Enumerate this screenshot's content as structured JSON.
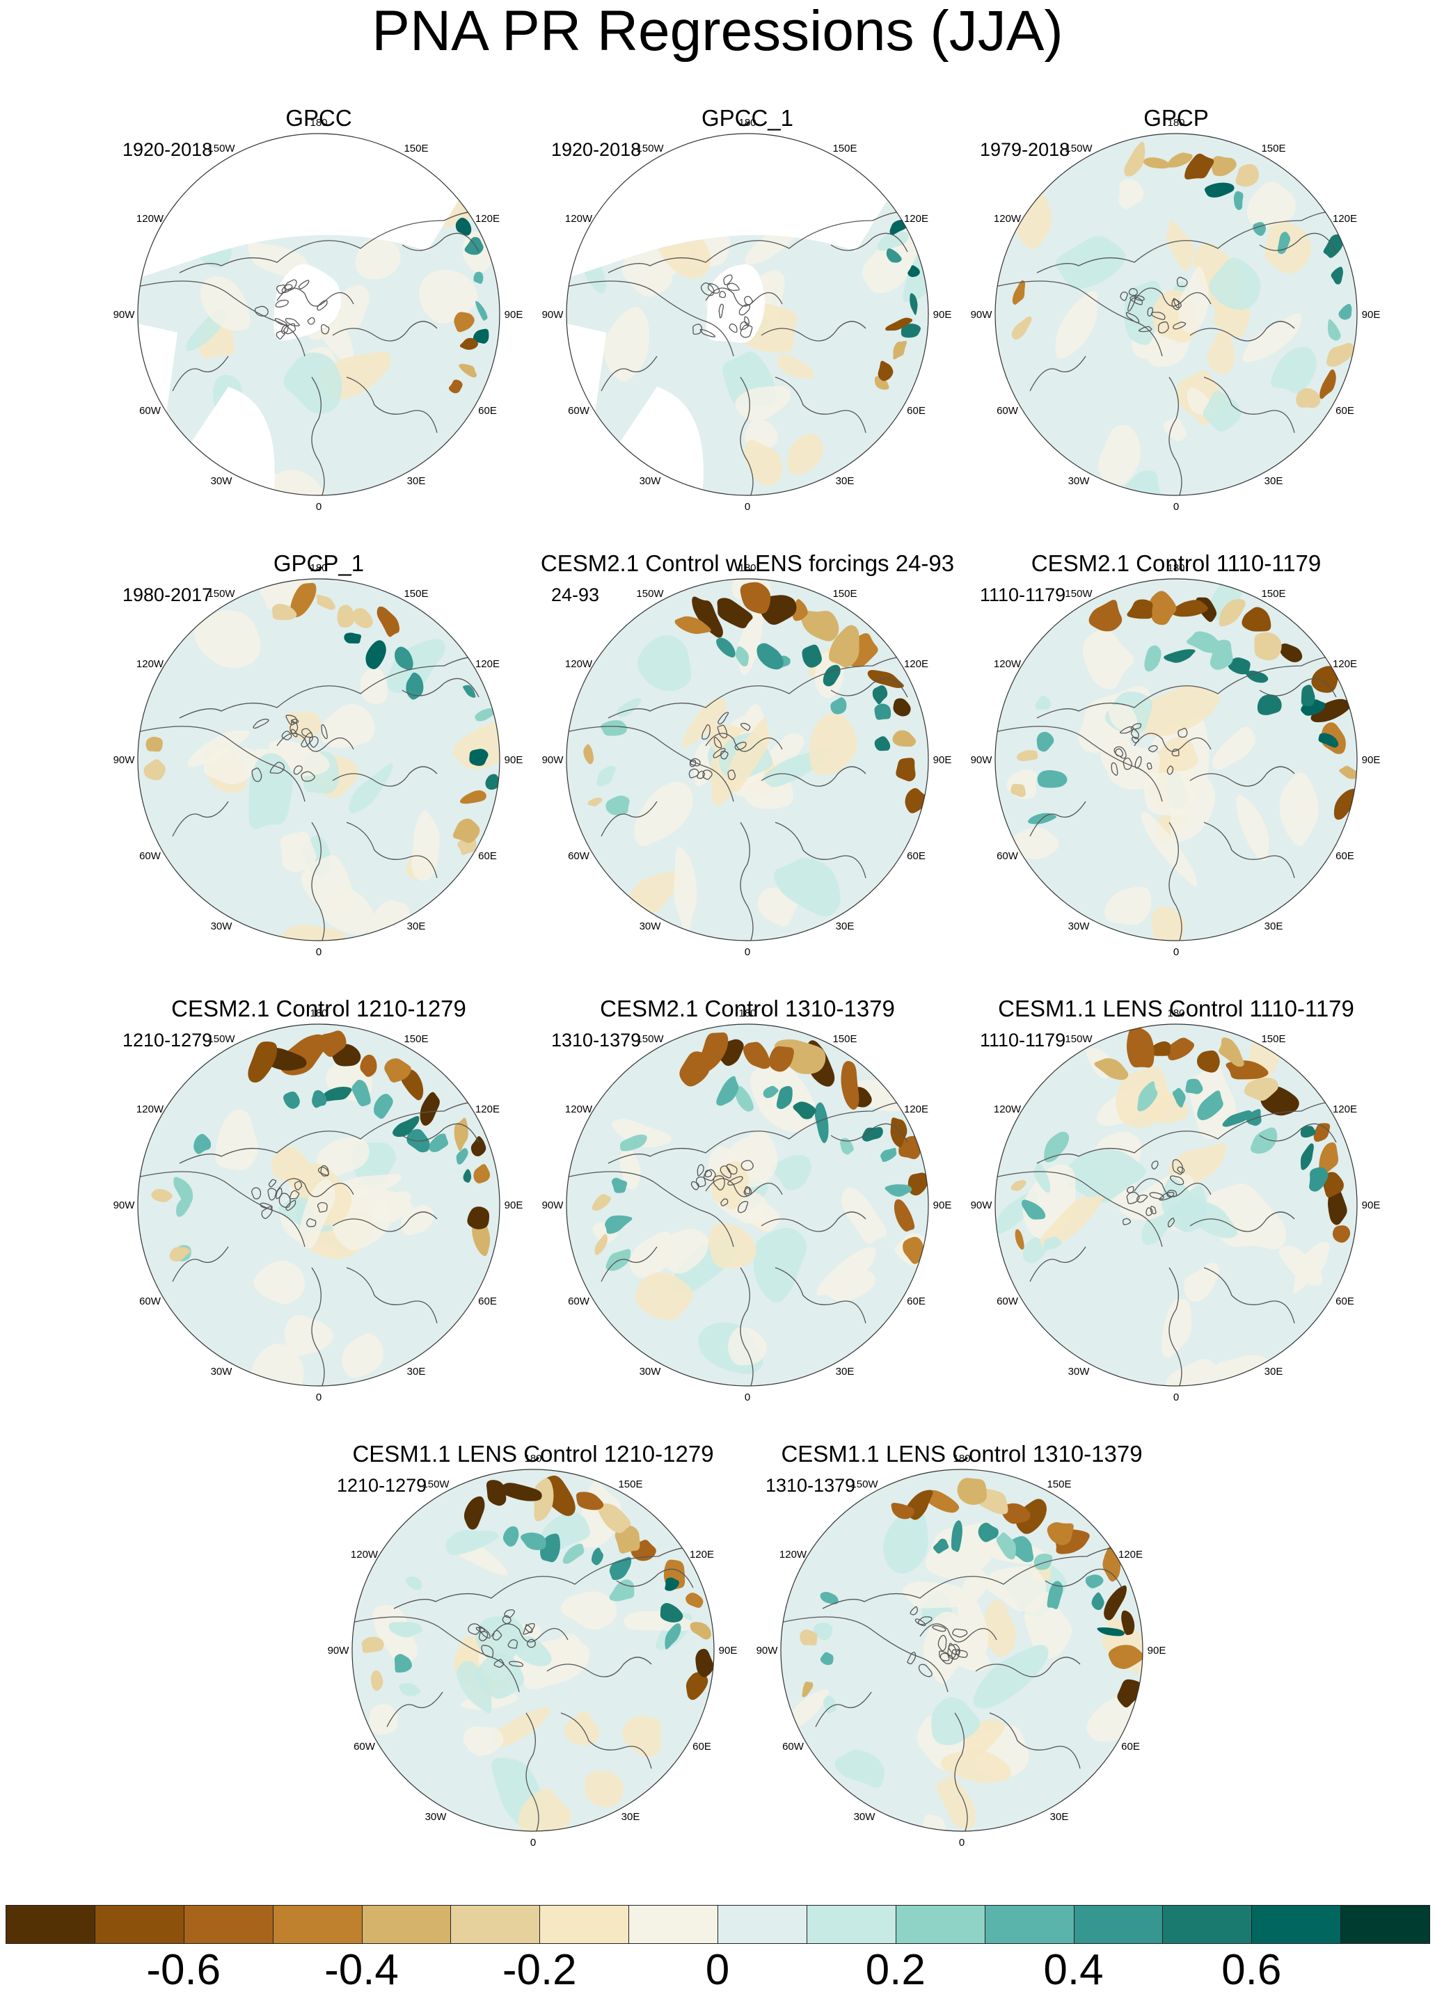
{
  "title": "PNA PR Regressions (JJA)",
  "panels": [
    {
      "title": "GPCC",
      "period": "1920-2018",
      "style": "gpcc",
      "seed": 11
    },
    {
      "title": "GPCC_1",
      "period": "1920-2018",
      "style": "gpcc",
      "seed": 23
    },
    {
      "title": "GPCP",
      "period": "1979-2018",
      "style": "gpcp",
      "seed": 37
    },
    {
      "title": "GPCP_1",
      "period": "1980-2017",
      "style": "gpcp",
      "seed": 41
    },
    {
      "title": "CESM2.1 Control wLENS forcings 24-93",
      "period": "24-93",
      "style": "model",
      "seed": 53
    },
    {
      "title": "CESM2.1 Control 1110-1179",
      "period": "1110-1179",
      "style": "model",
      "seed": 67
    },
    {
      "title": "CESM2.1 Control 1210-1279",
      "period": "1210-1279",
      "style": "model",
      "seed": 71
    },
    {
      "title": "CESM2.1 Control 1310-1379",
      "period": "1310-1379",
      "style": "model",
      "seed": 83
    },
    {
      "title": "CESM1.1 LENS Control 1110-1179",
      "period": "1110-1179",
      "style": "model",
      "seed": 97
    },
    {
      "title": "CESM1.1 LENS Control 1210-1279",
      "period": "1210-1279",
      "style": "model",
      "seed": 101
    },
    {
      "title": "CESM1.1 LENS Control 1310-1379",
      "period": "1310-1379",
      "style": "model",
      "seed": 113
    }
  ],
  "longitude_labels": [
    {
      "label": "180",
      "lon": 180
    },
    {
      "label": "150E",
      "lon": 150
    },
    {
      "label": "120E",
      "lon": 120
    },
    {
      "label": "90E",
      "lon": 90
    },
    {
      "label": "60E",
      "lon": 60
    },
    {
      "label": "30E",
      "lon": 30
    },
    {
      "label": "0",
      "lon": 0
    },
    {
      "label": "30W",
      "lon": -30
    },
    {
      "label": "60W",
      "lon": -60
    },
    {
      "label": "90W",
      "lon": -90
    },
    {
      "label": "120W",
      "lon": -120
    },
    {
      "label": "150W",
      "lon": -150
    }
  ],
  "colorbar": {
    "colors": [
      "#543005",
      "#8c510a",
      "#a8641a",
      "#bf812d",
      "#d6b36a",
      "#e6d09c",
      "#f6e8c3",
      "#f5f2e6",
      "#e0eeee",
      "#c7eae5",
      "#8fd3c6",
      "#5ab4ac",
      "#35978f",
      "#1b7a70",
      "#01665e",
      "#003c30"
    ],
    "levels": [
      -0.7,
      -0.6,
      -0.5,
      -0.4,
      -0.3,
      -0.2,
      -0.1,
      0,
      0.1,
      0.2,
      0.3,
      0.4,
      0.5,
      0.6,
      0.7
    ],
    "labels": [
      {
        "text": "-0.6",
        "value": -0.6
      },
      {
        "text": "-0.4",
        "value": -0.4
      },
      {
        "text": "-0.2",
        "value": -0.2
      },
      {
        "text": "0",
        "value": 0
      },
      {
        "text": "0.2",
        "value": 0.2
      },
      {
        "text": "0.4",
        "value": 0.4
      },
      {
        "text": "0.6",
        "value": 0.6
      }
    ]
  }
}
